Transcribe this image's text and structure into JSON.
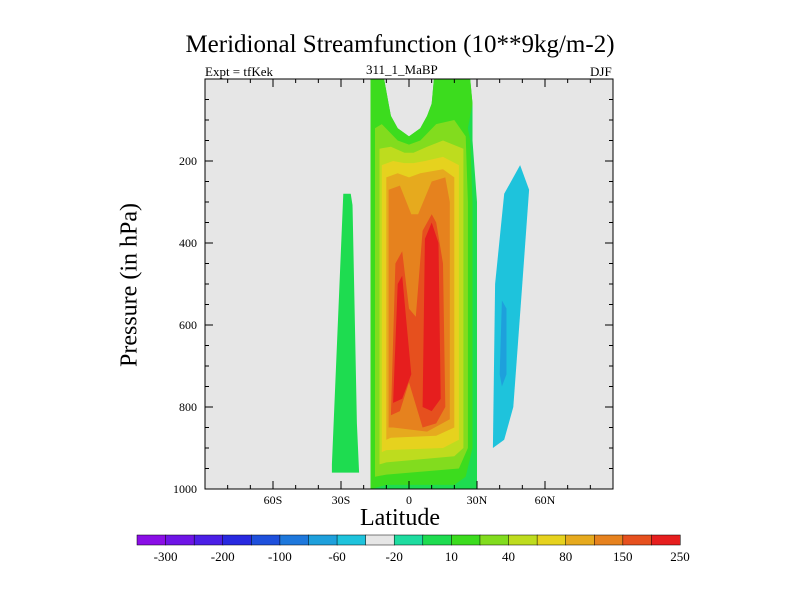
{
  "chart_data": {
    "type": "heatmap",
    "title": "Meridional Streamfunction (10**9kg/m-2)",
    "left_note": "Expt = tfKek",
    "center_note": "311_1_MaBP",
    "right_note": "DJF",
    "xlabel": "Latitude",
    "ylabel": "Pressure (in hPa)",
    "xlim": [
      -90,
      90
    ],
    "ylim": [
      1000,
      0
    ],
    "x_ticks": [
      {
        "value": -60,
        "label": "60S"
      },
      {
        "value": -30,
        "label": "30S"
      },
      {
        "value": 0,
        "label": "0"
      },
      {
        "value": 30,
        "label": "30N"
      },
      {
        "value": 60,
        "label": "60N"
      }
    ],
    "y_ticks": [
      {
        "value": 200,
        "label": "200"
      },
      {
        "value": 400,
        "label": "400"
      },
      {
        "value": 600,
        "label": "600"
      },
      {
        "value": 800,
        "label": "800"
      },
      {
        "value": 1000,
        "label": "1000"
      }
    ],
    "colorbar": {
      "colors": [
        "#8a0ee6",
        "#6e14e6",
        "#4b1ee6",
        "#2829e0",
        "#1e50dc",
        "#1e78dc",
        "#1ea0dc",
        "#1ec3dc",
        "#e6e6e6",
        "#1edca0",
        "#1edc50",
        "#3cdc1e",
        "#82dc1e",
        "#bedc1e",
        "#e6d21e",
        "#e6aa1e",
        "#e6821e",
        "#e6501e",
        "#e61e1e"
      ],
      "labels": [
        "-300",
        "-200",
        "-100",
        "-60",
        "-20",
        "10",
        "40",
        "80",
        "150",
        "250"
      ],
      "levels": [
        -300,
        -250,
        -200,
        -150,
        -100,
        -80,
        -60,
        -40,
        -20,
        0,
        10,
        20,
        40,
        60,
        80,
        100,
        150,
        200,
        250
      ]
    },
    "shading": [
      {
        "level": 10,
        "points": [
          [
            -34,
            940
          ],
          [
            -29,
            280
          ],
          [
            -25,
            280
          ],
          [
            -23,
            840
          ],
          [
            -22,
            960
          ],
          [
            -34,
            960
          ]
        ]
      },
      {
        "level": 10,
        "points": [
          [
            -17,
            1000
          ],
          [
            -17,
            0
          ],
          [
            -11,
            0
          ],
          [
            -9,
            60
          ],
          [
            -8,
            90
          ],
          [
            -5,
            120
          ],
          [
            0,
            140
          ],
          [
            5,
            120
          ],
          [
            8,
            90
          ],
          [
            10,
            60
          ],
          [
            11,
            0
          ],
          [
            27,
            0
          ],
          [
            28,
            60
          ],
          [
            28,
            150
          ],
          [
            30,
            300
          ],
          [
            30,
            1000
          ]
        ]
      },
      {
        "level": -20,
        "points": [
          [
            -26,
            270
          ],
          [
            -23,
            220
          ],
          [
            -20,
            220
          ],
          [
            -20,
            330
          ],
          [
            -24,
            340
          ]
        ]
      },
      {
        "level": -20,
        "points": [
          [
            33,
            840
          ],
          [
            33,
            340
          ],
          [
            36,
            200
          ],
          [
            40,
            70
          ],
          [
            44,
            0
          ],
          [
            58,
            0
          ],
          [
            59,
            60
          ],
          [
            58,
            200
          ],
          [
            55,
            500
          ],
          [
            53,
            860
          ],
          [
            50,
            920
          ],
          [
            40,
            950
          ]
        ]
      },
      {
        "level": -20,
        "points": [
          [
            71,
            0
          ],
          [
            76,
            0
          ],
          [
            74,
            30
          ],
          [
            72,
            30
          ]
        ]
      },
      {
        "level": 20,
        "points": [
          [
            -17,
            1000
          ],
          [
            -17,
            0
          ],
          [
            -11,
            0
          ],
          [
            -9,
            60
          ],
          [
            -8,
            90
          ],
          [
            -5,
            120
          ],
          [
            0,
            140
          ],
          [
            5,
            120
          ],
          [
            8,
            90
          ],
          [
            10,
            60
          ],
          [
            11,
            0
          ],
          [
            27,
            0
          ],
          [
            28,
            60
          ],
          [
            26,
            120
          ],
          [
            27,
            150
          ],
          [
            28,
            300
          ],
          [
            28,
            900
          ],
          [
            25,
            970
          ],
          [
            20,
            990
          ],
          [
            -10,
            990
          ]
        ]
      },
      {
        "level": 40,
        "points": [
          [
            -15,
            970
          ],
          [
            -15,
            120
          ],
          [
            -12,
            110
          ],
          [
            -5,
            150
          ],
          [
            0,
            160
          ],
          [
            5,
            150
          ],
          [
            12,
            110
          ],
          [
            20,
            100
          ],
          [
            25,
            140
          ],
          [
            26,
            300
          ],
          [
            26,
            900
          ],
          [
            22,
            950
          ],
          [
            -10,
            965
          ]
        ]
      },
      {
        "level": 60,
        "points": [
          [
            -13,
            940
          ],
          [
            -13,
            170
          ],
          [
            -8,
            165
          ],
          [
            -2,
            180
          ],
          [
            2,
            180
          ],
          [
            8,
            165
          ],
          [
            15,
            150
          ],
          [
            24,
            170
          ],
          [
            24,
            900
          ],
          [
            20,
            920
          ],
          [
            -10,
            935
          ]
        ]
      },
      {
        "level": 80,
        "points": [
          [
            -12,
            910
          ],
          [
            -12,
            210
          ],
          [
            -7,
            200
          ],
          [
            -2,
            205
          ],
          [
            2,
            205
          ],
          [
            7,
            200
          ],
          [
            15,
            190
          ],
          [
            22,
            210
          ],
          [
            22,
            880
          ],
          [
            15,
            900
          ],
          [
            -10,
            905
          ]
        ]
      },
      {
        "level": 100,
        "points": [
          [
            -10,
            880
          ],
          [
            -10,
            240
          ],
          [
            -5,
            230
          ],
          [
            0,
            240
          ],
          [
            5,
            230
          ],
          [
            15,
            220
          ],
          [
            20,
            240
          ],
          [
            20,
            850
          ],
          [
            12,
            870
          ],
          [
            -8,
            875
          ]
        ]
      },
      {
        "level": -40,
        "points": [
          [
            37,
            900
          ],
          [
            38,
            500
          ],
          [
            42,
            280
          ],
          [
            49,
            210
          ],
          [
            53,
            270
          ],
          [
            50,
            500
          ],
          [
            46,
            800
          ],
          [
            42,
            880
          ]
        ]
      },
      {
        "level": 150,
        "points": [
          [
            -9,
            850
          ],
          [
            -9,
            270
          ],
          [
            -4,
            260
          ],
          [
            1,
            330
          ],
          [
            4,
            330
          ],
          [
            10,
            250
          ],
          [
            16,
            240
          ],
          [
            18,
            300
          ],
          [
            18,
            830
          ],
          [
            8,
            860
          ],
          [
            -7,
            850
          ]
        ]
      },
      {
        "level": 200,
        "points": [
          [
            -8,
            820
          ],
          [
            -6,
            450
          ],
          [
            -3,
            420
          ],
          [
            0,
            560
          ],
          [
            3,
            580
          ],
          [
            6,
            370
          ],
          [
            10,
            330
          ],
          [
            12,
            350
          ],
          [
            15,
            450
          ],
          [
            16,
            800
          ],
          [
            12,
            840
          ],
          [
            6,
            850
          ],
          [
            0,
            740
          ],
          [
            -4,
            810
          ]
        ]
      },
      {
        "level": 250,
        "points": [
          [
            -7,
            790
          ],
          [
            -5,
            500
          ],
          [
            -3,
            480
          ],
          [
            -1,
            600
          ],
          [
            1,
            720
          ],
          [
            -3,
            780
          ]
        ]
      },
      {
        "level": 250,
        "points": [
          [
            6,
            800
          ],
          [
            7,
            390
          ],
          [
            10,
            350
          ],
          [
            13,
            400
          ],
          [
            14,
            780
          ],
          [
            10,
            810
          ]
        ]
      },
      {
        "level": -60,
        "points": [
          [
            40,
            720
          ],
          [
            41,
            540
          ],
          [
            43,
            560
          ],
          [
            43,
            720
          ],
          [
            41,
            750
          ]
        ]
      }
    ]
  }
}
